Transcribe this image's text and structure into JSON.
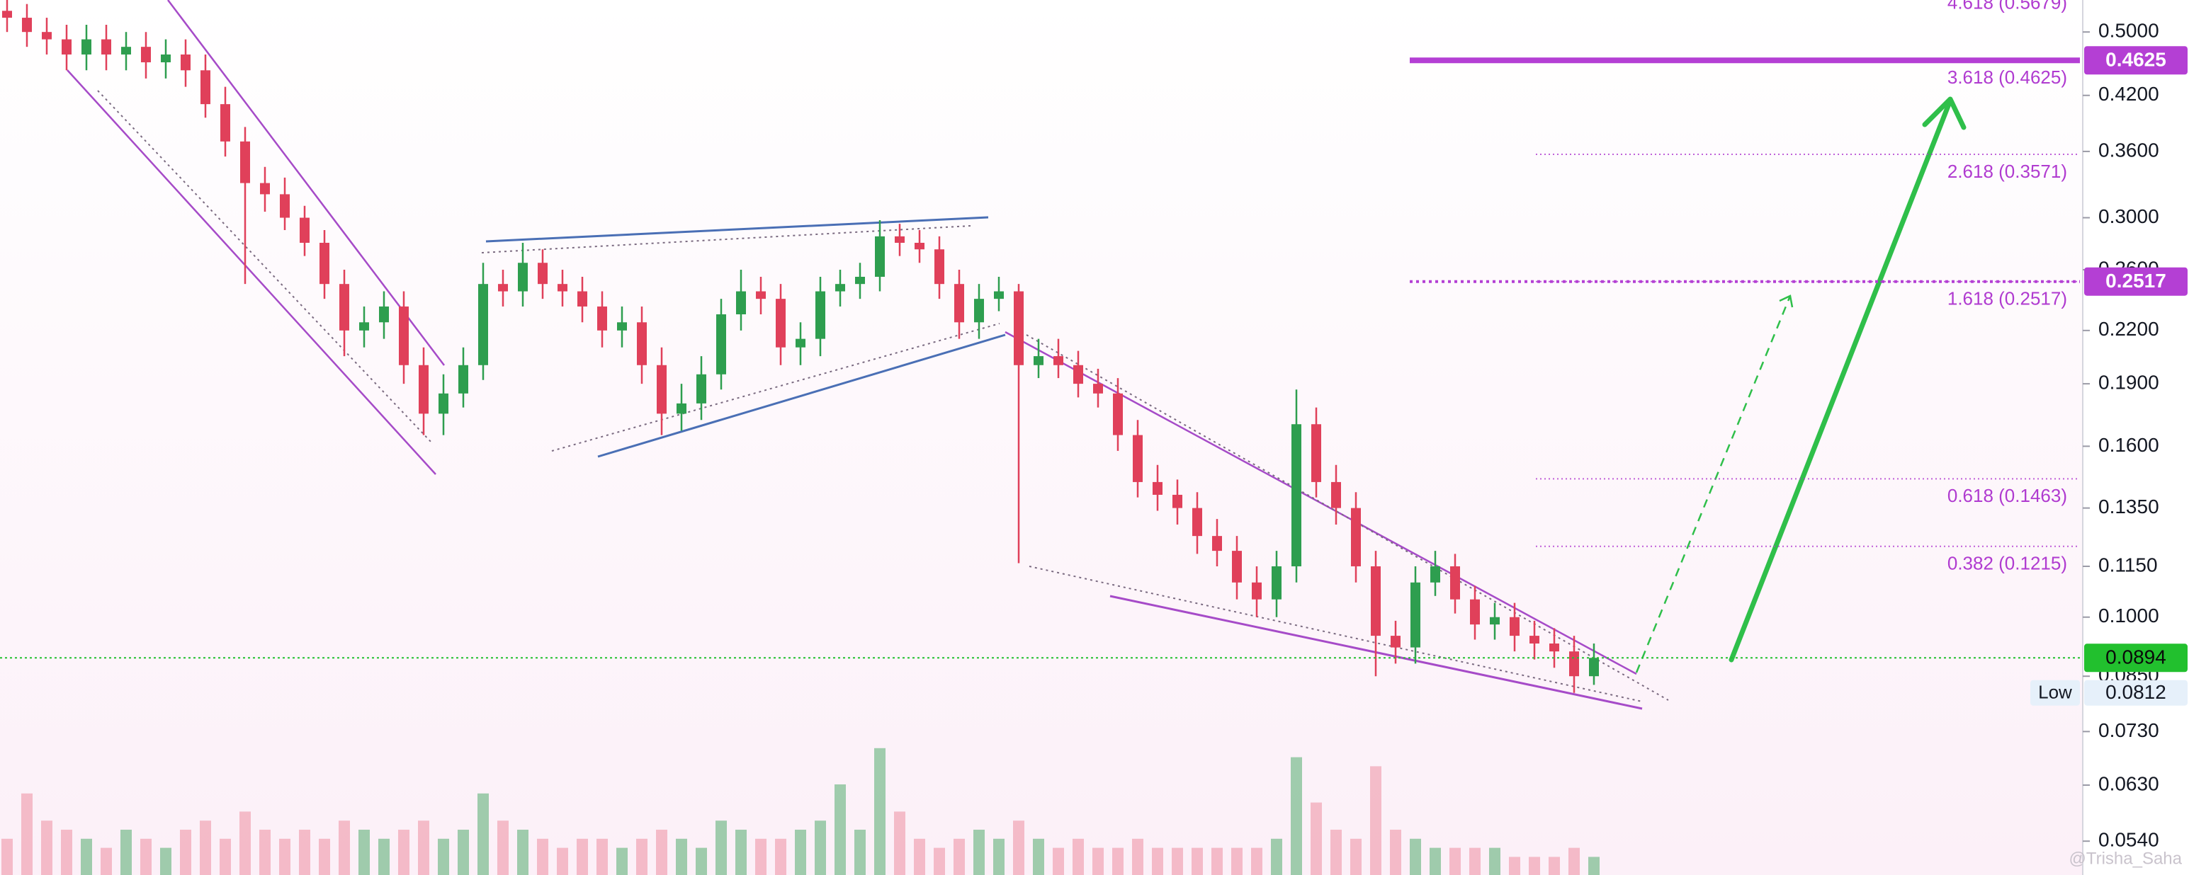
{
  "chart_data": {
    "type": "candlestick",
    "log_scale": true,
    "ylim": [
      0.0492,
      0.546
    ],
    "yticks": [
      {
        "value": 0.5,
        "label": "0.5000"
      },
      {
        "value": 0.42,
        "label": "0.4200"
      },
      {
        "value": 0.36,
        "label": "0.3600"
      },
      {
        "value": 0.3,
        "label": "0.3000"
      },
      {
        "value": 0.26,
        "label": "0.2600"
      },
      {
        "value": 0.22,
        "label": "0.2200"
      },
      {
        "value": 0.19,
        "label": "0.1900"
      },
      {
        "value": 0.16,
        "label": "0.1600"
      },
      {
        "value": 0.135,
        "label": "0.1350"
      },
      {
        "value": 0.115,
        "label": "0.1150"
      },
      {
        "value": 0.1,
        "label": "0.1000"
      },
      {
        "value": 0.085,
        "label": "0.0850"
      },
      {
        "value": 0.073,
        "label": "0.0730"
      },
      {
        "value": 0.063,
        "label": "0.0630"
      },
      {
        "value": 0.054,
        "label": "0.0540"
      }
    ],
    "up_color": "#2e9e4f",
    "down_color": "#e0405a",
    "open": [
      0.53,
      0.52,
      0.5,
      0.49,
      0.47,
      0.49,
      0.47,
      0.48,
      0.46,
      0.47,
      0.45,
      0.41,
      0.37,
      0.33,
      0.32,
      0.3,
      0.28,
      0.25,
      0.22,
      0.225,
      0.235,
      0.2,
      0.175,
      0.185,
      0.2,
      0.25,
      0.245,
      0.265,
      0.25,
      0.245,
      0.235,
      0.22,
      0.225,
      0.2,
      0.175,
      0.18,
      0.195,
      0.23,
      0.245,
      0.24,
      0.21,
      0.215,
      0.245,
      0.25,
      0.255,
      0.285,
      0.28,
      0.275,
      0.25,
      0.225,
      0.24,
      0.245,
      0.2,
      0.205,
      0.2,
      0.19,
      0.185,
      0.165,
      0.145,
      0.14,
      0.135,
      0.125,
      0.12,
      0.11,
      0.105,
      0.115,
      0.17,
      0.145,
      0.135,
      0.115,
      0.095,
      0.092,
      0.11,
      0.115,
      0.105,
      0.098,
      0.1,
      0.095,
      0.093,
      0.091,
      0.085
    ],
    "high": [
      0.55,
      0.54,
      0.52,
      0.51,
      0.51,
      0.51,
      0.5,
      0.5,
      0.49,
      0.49,
      0.47,
      0.43,
      0.385,
      0.345,
      0.335,
      0.31,
      0.29,
      0.26,
      0.235,
      0.245,
      0.245,
      0.21,
      0.195,
      0.21,
      0.265,
      0.26,
      0.28,
      0.275,
      0.26,
      0.255,
      0.245,
      0.235,
      0.235,
      0.21,
      0.19,
      0.205,
      0.24,
      0.26,
      0.255,
      0.25,
      0.225,
      0.255,
      0.26,
      0.265,
      0.298,
      0.295,
      0.29,
      0.285,
      0.26,
      0.25,
      0.255,
      0.25,
      0.215,
      0.215,
      0.208,
      0.198,
      0.193,
      0.172,
      0.152,
      0.146,
      0.141,
      0.131,
      0.125,
      0.115,
      0.12,
      0.187,
      0.178,
      0.152,
      0.141,
      0.12,
      0.099,
      0.115,
      0.12,
      0.119,
      0.109,
      0.104,
      0.104,
      0.099,
      0.097,
      0.095,
      0.093
    ],
    "low": [
      0.5,
      0.48,
      0.47,
      0.45,
      0.45,
      0.45,
      0.45,
      0.44,
      0.44,
      0.43,
      0.395,
      0.355,
      0.25,
      0.305,
      0.29,
      0.27,
      0.24,
      0.205,
      0.21,
      0.215,
      0.19,
      0.165,
      0.165,
      0.178,
      0.192,
      0.235,
      0.235,
      0.24,
      0.235,
      0.225,
      0.21,
      0.21,
      0.19,
      0.165,
      0.167,
      0.172,
      0.187,
      0.22,
      0.23,
      0.2,
      0.2,
      0.205,
      0.235,
      0.24,
      0.245,
      0.27,
      0.265,
      0.24,
      0.215,
      0.215,
      0.232,
      0.116,
      0.193,
      0.193,
      0.183,
      0.178,
      0.158,
      0.139,
      0.134,
      0.129,
      0.119,
      0.115,
      0.105,
      0.1,
      0.1,
      0.11,
      0.139,
      0.129,
      0.11,
      0.085,
      0.088,
      0.088,
      0.106,
      0.101,
      0.094,
      0.094,
      0.091,
      0.089,
      0.087,
      0.0812,
      0.083
    ],
    "close": [
      0.52,
      0.5,
      0.49,
      0.47,
      0.49,
      0.47,
      0.48,
      0.46,
      0.47,
      0.45,
      0.41,
      0.37,
      0.33,
      0.32,
      0.3,
      0.28,
      0.25,
      0.22,
      0.225,
      0.235,
      0.2,
      0.175,
      0.185,
      0.2,
      0.25,
      0.245,
      0.265,
      0.25,
      0.245,
      0.235,
      0.22,
      0.225,
      0.2,
      0.175,
      0.18,
      0.195,
      0.23,
      0.245,
      0.24,
      0.21,
      0.215,
      0.245,
      0.25,
      0.255,
      0.285,
      0.28,
      0.275,
      0.25,
      0.225,
      0.24,
      0.245,
      0.2,
      0.205,
      0.2,
      0.19,
      0.185,
      0.165,
      0.145,
      0.14,
      0.135,
      0.125,
      0.12,
      0.11,
      0.105,
      0.115,
      0.17,
      0.145,
      0.135,
      0.115,
      0.095,
      0.092,
      0.11,
      0.115,
      0.105,
      0.098,
      0.1,
      0.095,
      0.093,
      0.091,
      0.085,
      0.0894
    ],
    "volume": [
      20,
      45,
      30,
      25,
      20,
      15,
      25,
      20,
      15,
      25,
      30,
      20,
      35,
      25,
      20,
      25,
      20,
      30,
      25,
      20,
      25,
      30,
      20,
      25,
      45,
      30,
      25,
      20,
      15,
      20,
      20,
      15,
      20,
      25,
      20,
      15,
      30,
      25,
      20,
      20,
      25,
      30,
      50,
      25,
      70,
      35,
      20,
      15,
      20,
      25,
      20,
      30,
      20,
      15,
      20,
      15,
      15,
      20,
      15,
      15,
      15,
      15,
      15,
      15,
      20,
      65,
      40,
      25,
      20,
      60,
      25,
      20,
      15,
      15,
      15,
      15,
      10,
      10,
      10,
      15,
      10
    ],
    "fib_levels": [
      {
        "value": 0.5679,
        "label": "4.618 (0.5679)"
      },
      {
        "value": 0.4625,
        "label": "3.618 (0.4625)"
      },
      {
        "value": 0.3571,
        "label": "2.618 (0.3571)"
      },
      {
        "value": 0.2517,
        "label": "1.618 (0.2517)"
      },
      {
        "value": 0.1463,
        "label": "0.618 (0.1463)"
      },
      {
        "value": 0.1215,
        "label": "0.382 (0.1215)"
      }
    ],
    "fib_color": "#b03bd0",
    "price_levels": [
      {
        "value": 0.4625,
        "color": "#b43fd4",
        "style": "solid"
      },
      {
        "value": 0.2517,
        "color": "#b43fd4",
        "style": "dotted"
      }
    ],
    "current_price": {
      "value": 0.0894,
      "color": "#22c02e"
    },
    "low_marker": {
      "label": "Low",
      "value": 0.0812
    },
    "watermark": "@Trisha_Saha"
  }
}
